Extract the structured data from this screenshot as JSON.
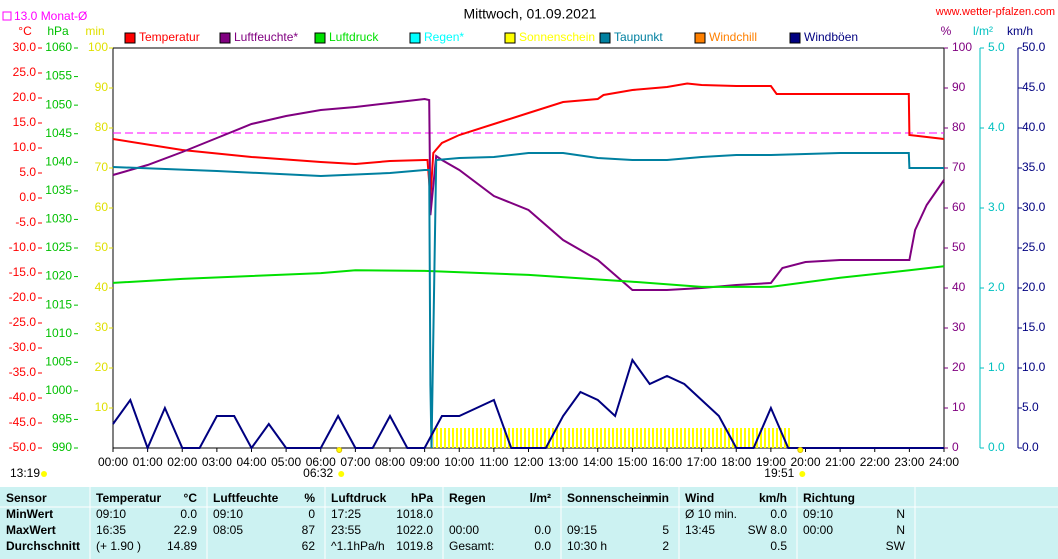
{
  "chart_data": {
    "type": "line",
    "title": "Mittwoch, 01.09.2021",
    "source": "www.wetter-pfalzen.com",
    "xlim": [
      "00:00",
      "24:00"
    ],
    "xticks": [
      "00:00",
      "01:00",
      "02:00",
      "03:00",
      "04:00",
      "05:00",
      "06:00",
      "07:00",
      "08:00",
      "09:00",
      "10:00",
      "11:00",
      "12:00",
      "13:00",
      "14:00",
      "15:00",
      "16:00",
      "17:00",
      "18:00",
      "19:00",
      "20:00",
      "21:00",
      "22:00",
      "23:00",
      "24:00"
    ],
    "axes": {
      "temp": {
        "label": "°C",
        "color": "#ff0000",
        "ylim": [
          -50,
          30
        ],
        "yticks": [
          {
            "value": 30,
            "label": "30.0"
          },
          {
            "value": 25,
            "label": "25.0"
          },
          {
            "value": 20,
            "label": "20.0"
          },
          {
            "value": 15,
            "label": "15.0"
          },
          {
            "value": 10,
            "label": "10.0"
          },
          {
            "value": 5,
            "label": "5.0"
          },
          {
            "value": 0,
            "label": "0.0"
          },
          {
            "value": -5,
            "label": "-5.0"
          },
          {
            "value": -10,
            "label": "-10.0"
          },
          {
            "value": -15,
            "label": "-15.0"
          },
          {
            "value": -20,
            "label": "-20.0"
          },
          {
            "value": -25,
            "label": "-25.0"
          },
          {
            "value": -30,
            "label": "-30.0"
          },
          {
            "value": -35,
            "label": "-35.0"
          },
          {
            "value": -40,
            "label": "-40.0"
          },
          {
            "value": -45,
            "label": "-45.0"
          },
          {
            "value": -50,
            "label": "-50.0"
          }
        ]
      },
      "press": {
        "label": "hPa",
        "color": "#00c000",
        "ylim": [
          990,
          1060
        ],
        "yticks": [
          1060,
          1055,
          1050,
          1045,
          1040,
          1035,
          1030,
          1025,
          1020,
          1015,
          1010,
          1005,
          1000,
          995,
          990
        ]
      },
      "min": {
        "label": "min",
        "color": "#e0e000",
        "ylim": [
          0,
          100
        ],
        "yticks": [
          100,
          90,
          80,
          70,
          60,
          50,
          40,
          30,
          20,
          10
        ]
      },
      "hum": {
        "label": "%",
        "color": "#800080",
        "ylim": [
          0,
          100
        ],
        "yticks": [
          100,
          90,
          80,
          70,
          60,
          50,
          40,
          30,
          20,
          10,
          0
        ]
      },
      "rain": {
        "label": "l/m²",
        "color": "#00c0c0",
        "ylim": [
          0,
          5
        ],
        "yticks": [
          {
            "value": 5,
            "label": "5.0"
          },
          {
            "value": 4,
            "label": "4.0"
          },
          {
            "value": 3,
            "label": "3.0"
          },
          {
            "value": 2,
            "label": "2.0"
          },
          {
            "value": 1,
            "label": "1.0"
          },
          {
            "value": 0,
            "label": "0.0"
          }
        ]
      },
      "wind": {
        "label": "km/h",
        "color": "#000080",
        "ylim": [
          0,
          50
        ],
        "yticks": [
          {
            "value": 50,
            "label": "50.0"
          },
          {
            "value": 45,
            "label": "45.0"
          },
          {
            "value": 40,
            "label": "40.0"
          },
          {
            "value": 35,
            "label": "35.0"
          },
          {
            "value": 30,
            "label": "30.0"
          },
          {
            "value": 25,
            "label": "25.0"
          },
          {
            "value": 20,
            "label": "20.0"
          },
          {
            "value": 15,
            "label": "15.0"
          },
          {
            "value": 10,
            "label": "10.0"
          },
          {
            "value": 5,
            "label": "5.0"
          },
          {
            "value": 0,
            "label": "0.0"
          }
        ]
      }
    },
    "reference_line": {
      "label": "13.0 Monat-Ø",
      "value": 13,
      "axis": "temp",
      "color": "#ff00ff"
    },
    "series": [
      {
        "name": "Temperatur",
        "color": "#ff0000",
        "axis": "temp",
        "x": [
          "00:00",
          "02:00",
          "04:00",
          "06:00",
          "07:00",
          "08:00",
          "09:00",
          "09:05",
          "09:10",
          "09:15",
          "09:30",
          "10:00",
          "11:00",
          "12:00",
          "13:00",
          "14:00",
          "14:10",
          "15:00",
          "16:00",
          "16:35",
          "17:00",
          "18:00",
          "19:00",
          "19:10",
          "22:59",
          "23:00",
          "24:00"
        ],
        "values": [
          11.8,
          9.6,
          8.2,
          7.2,
          6.8,
          7.4,
          7.6,
          7.6,
          0.0,
          9.0,
          11.0,
          12.6,
          14.8,
          17.0,
          19.2,
          19.8,
          20.6,
          21.6,
          22.2,
          22.9,
          22.6,
          22.4,
          22.4,
          20.8,
          20.8,
          12.6,
          11.8
        ]
      },
      {
        "name": "Luftfeuchte*",
        "color": "#800080",
        "axis": "hum",
        "x": [
          "00:00",
          "01:00",
          "02:00",
          "03:00",
          "04:00",
          "05:00",
          "06:00",
          "07:00",
          "08:00",
          "09:00",
          "09:08",
          "09:10",
          "09:20",
          "09:30",
          "10:00",
          "11:00",
          "12:00",
          "13:00",
          "14:00",
          "15:00",
          "16:00",
          "17:00",
          "18:00",
          "19:00",
          "19:20",
          "20:00",
          "21:00",
          "22:00",
          "23:00",
          "23:10",
          "23:30",
          "24:00"
        ],
        "values": [
          68.25,
          70.75,
          74,
          77.5,
          81,
          83,
          84.5,
          85.25,
          86.25,
          87.25,
          87,
          58.2,
          73,
          72,
          69.5,
          63,
          59.5,
          52,
          47,
          39.5,
          39.5,
          40,
          40.75,
          41.25,
          45,
          46.5,
          47,
          47,
          47,
          54.5,
          60.75,
          67
        ]
      },
      {
        "name": "Luftdruck",
        "color": "#00e000",
        "axis": "press",
        "x": [
          "00:00",
          "02:00",
          "04:00",
          "06:00",
          "07:00",
          "09:00",
          "12:00",
          "15:00",
          "17:00",
          "19:00",
          "21:00",
          "23:00",
          "24:00"
        ],
        "values": [
          1018.9,
          1019.6,
          1020.1,
          1020.6,
          1021.1,
          1021.0,
          1020.3,
          1019.1,
          1018.2,
          1018.2,
          1019.8,
          1021.1,
          1021.8
        ]
      },
      {
        "name": "Regen*",
        "color": "#00ffff",
        "axis": "rain",
        "x": [],
        "values": []
      },
      {
        "name": "Sonnenschein",
        "color": "#ffff00",
        "axis": "min",
        "type": "area",
        "x": [
          "09:15",
          "19:35"
        ],
        "values": [
          5,
          5
        ]
      },
      {
        "name": "Taupunkt",
        "color": "#0080a0",
        "axis": "temp",
        "x": [
          "00:00",
          "03:00",
          "06:00",
          "08:00",
          "09:00",
          "09:08",
          "09:10",
          "09:12",
          "09:20",
          "10:00",
          "11:00",
          "12:00",
          "13:00",
          "14:00",
          "15:00",
          "16:00",
          "17:00",
          "18:00",
          "19:00",
          "21:00",
          "22:59",
          "23:00",
          "24:00"
        ],
        "values": [
          6.2,
          5.4,
          4.4,
          5.0,
          5.6,
          5.6,
          -37.4,
          -50,
          7.6,
          8.0,
          8.2,
          9.0,
          9.0,
          8.0,
          7.6,
          7.6,
          8.2,
          8.6,
          8.6,
          9.0,
          9.0,
          6.0,
          6.0
        ]
      },
      {
        "name": "Windchill",
        "color": "#ff8000",
        "axis": "temp",
        "x": [],
        "values": []
      },
      {
        "name": "Windböen",
        "color": "#000080",
        "axis": "wind",
        "x": [
          "00:00",
          "00:30",
          "01:00",
          "01:30",
          "02:00",
          "02:30",
          "03:00",
          "03:30",
          "04:00",
          "04:30",
          "05:00",
          "05:30",
          "06:00",
          "06:30",
          "07:00",
          "07:30",
          "08:00",
          "08:30",
          "09:00",
          "09:30",
          "10:00",
          "10:30",
          "11:00",
          "11:30",
          "12:00",
          "12:30",
          "13:00",
          "13:30",
          "14:00",
          "14:30",
          "15:00",
          "15:30",
          "16:00",
          "16:30",
          "17:00",
          "17:30",
          "18:00",
          "18:30",
          "19:00",
          "19:30",
          "20:00",
          "20:30",
          "21:00",
          "21:30",
          "22:00",
          "22:30",
          "23:00",
          "23:30",
          "24:00"
        ],
        "values": [
          3,
          6,
          0,
          5,
          0,
          0,
          4,
          4,
          0,
          3,
          0,
          0,
          0,
          4,
          0,
          0,
          4,
          0,
          0,
          4,
          4,
          5,
          6,
          0,
          0,
          0,
          4,
          7,
          6,
          4,
          11,
          8,
          9,
          8,
          6,
          4,
          0,
          0,
          5,
          0,
          0,
          0,
          0,
          0,
          0,
          0,
          0,
          0,
          0
        ]
      }
    ],
    "annotations": [
      {
        "text": "13:19"
      },
      {
        "text": "06:32",
        "x": "06:32"
      },
      {
        "text": "19:51",
        "x": "19:51"
      }
    ]
  },
  "table": {
    "columns": [
      {
        "header": [
          "Sensor"
        ],
        "rows": [
          [
            "MinWert"
          ],
          [
            "MaxWert"
          ],
          [
            "Durchschnitt"
          ]
        ]
      },
      {
        "header": [
          "Temperatur",
          "°C"
        ],
        "rows": [
          [
            "09:10",
            "0.0"
          ],
          [
            "16:35",
            "22.9"
          ],
          [
            "(+ 1.90 )",
            "14.89"
          ]
        ]
      },
      {
        "header": [
          "Luftfeuchte",
          "%"
        ],
        "rows": [
          [
            "09:10",
            "0"
          ],
          [
            "08:05",
            "87"
          ],
          [
            null,
            "62"
          ]
        ]
      },
      {
        "header": [
          "Luftdruck",
          "hPa"
        ],
        "rows": [
          [
            "17:25",
            "1018.0"
          ],
          [
            "23:55",
            "1022.0"
          ],
          [
            "^1.1hPa/h",
            "1019.8"
          ]
        ]
      },
      {
        "header": [
          "Regen",
          "l/m²"
        ],
        "rows": [
          [
            null,
            null
          ],
          [
            "00:00",
            "0.0"
          ],
          [
            "Gesamt:",
            "0.0"
          ]
        ]
      },
      {
        "header": [
          "Sonnenschein",
          "min"
        ],
        "rows": [
          [
            null,
            null
          ],
          [
            "09:15",
            "5"
          ],
          [
            "10:30 h",
            "2"
          ]
        ]
      },
      {
        "header": [
          "Wind",
          "km/h"
        ],
        "rows": [
          [
            "Ø 10 min.",
            "0.0"
          ],
          [
            "13:45",
            "SW 8.0"
          ],
          [
            null,
            "0.5"
          ]
        ]
      },
      {
        "header": [
          "Richtung"
        ],
        "rows": [
          [
            "09:10",
            "N"
          ],
          [
            "00:00",
            "N"
          ],
          [
            null,
            "SW"
          ]
        ]
      }
    ]
  }
}
